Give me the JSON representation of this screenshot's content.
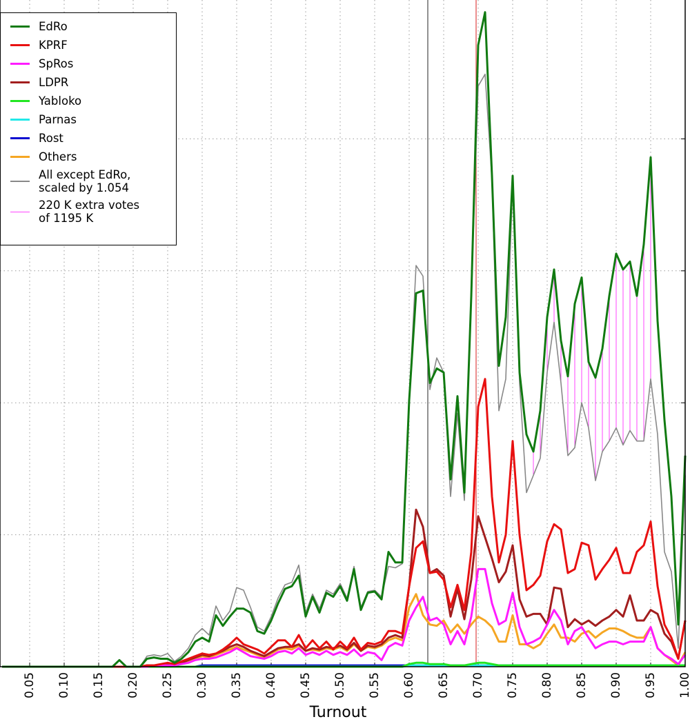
{
  "chart_data": {
    "type": "line",
    "xlabel": "Turnout",
    "x": [
      0.01,
      0.02,
      0.03,
      0.04,
      0.05,
      0.06,
      0.07,
      0.08,
      0.09,
      0.1,
      0.11,
      0.12,
      0.13,
      0.14,
      0.15,
      0.16,
      0.17,
      0.18,
      0.19,
      0.2,
      0.21,
      0.22,
      0.23,
      0.24,
      0.25,
      0.26,
      0.27,
      0.28,
      0.29,
      0.3,
      0.31,
      0.32,
      0.33,
      0.34,
      0.35,
      0.36,
      0.37,
      0.38,
      0.39,
      0.4,
      0.41,
      0.42,
      0.43,
      0.44,
      0.45,
      0.46,
      0.47,
      0.48,
      0.49,
      0.5,
      0.51,
      0.52,
      0.53,
      0.54,
      0.55,
      0.56,
      0.57,
      0.58,
      0.59,
      0.6,
      0.61,
      0.62,
      0.63,
      0.64,
      0.65,
      0.66,
      0.67,
      0.68,
      0.69,
      0.7,
      0.71,
      0.72,
      0.73,
      0.74,
      0.75,
      0.76,
      0.77,
      0.78,
      0.79,
      0.8,
      0.81,
      0.82,
      0.83,
      0.84,
      0.85,
      0.86,
      0.87,
      0.88,
      0.89,
      0.9,
      0.91,
      0.92,
      0.93,
      0.94,
      0.95,
      0.96,
      0.97,
      0.98,
      0.99,
      1.0
    ],
    "series": [
      {
        "name": "EdRo",
        "color": "#117a11",
        "width": 3,
        "values": [
          0,
          0,
          0,
          0,
          0,
          0,
          0,
          0,
          0,
          0,
          0,
          0,
          0,
          0,
          0,
          0,
          0,
          5,
          0,
          0,
          0,
          6,
          7,
          6,
          6,
          3,
          6,
          11,
          19,
          22,
          19,
          39,
          31,
          38,
          44,
          44,
          41,
          27,
          25,
          35,
          48,
          59,
          61,
          69,
          38,
          53,
          41,
          56,
          53,
          61,
          50,
          74,
          43,
          56,
          57,
          51,
          87,
          79,
          79,
          202,
          283,
          285,
          215,
          226,
          223,
          142,
          205,
          132,
          281,
          471,
          496,
          372,
          228,
          265,
          372,
          223,
          176,
          163,
          194,
          265,
          301,
          247,
          220,
          275,
          295,
          231,
          219,
          241,
          281,
          313,
          301,
          307,
          281,
          320,
          386,
          262,
          187,
          129,
          32,
          160
        ]
      },
      {
        "name": "KPRF",
        "color": "#e81010",
        "width": 3,
        "values": [
          0,
          0,
          0,
          0,
          0,
          0,
          0,
          0,
          0,
          0,
          0,
          0,
          0,
          0,
          0,
          0,
          0,
          0,
          0,
          0,
          0,
          1,
          1,
          2,
          3,
          2,
          4,
          6,
          8,
          10,
          9,
          10,
          13,
          17,
          22,
          17,
          15,
          13,
          10,
          15,
          20,
          20,
          15,
          24,
          14,
          20,
          14,
          19,
          13,
          19,
          14,
          22,
          13,
          18,
          17,
          19,
          27,
          27,
          25,
          61,
          90,
          95,
          71,
          72,
          66,
          45,
          62,
          43,
          87,
          197,
          218,
          129,
          79,
          100,
          171,
          100,
          58,
          62,
          69,
          95,
          108,
          104,
          71,
          74,
          94,
          92,
          66,
          74,
          81,
          90,
          71,
          71,
          87,
          92,
          110,
          61,
          32,
          22,
          6,
          35
        ]
      },
      {
        "name": "SpRos",
        "color": "#ff1cff",
        "width": 3,
        "values": [
          0,
          0,
          0,
          0,
          0,
          0,
          0,
          0,
          0,
          0,
          0,
          0,
          0,
          0,
          0,
          0,
          0,
          0,
          0,
          0,
          0,
          0,
          1,
          1,
          1,
          1,
          2,
          3,
          5,
          6,
          6,
          7,
          9,
          11,
          14,
          11,
          8,
          7,
          6,
          8,
          11,
          12,
          10,
          14,
          9,
          11,
          9,
          12,
          9,
          11,
          9,
          13,
          8,
          11,
          10,
          5,
          15,
          18,
          16,
          35,
          45,
          53,
          35,
          37,
          32,
          17,
          27,
          17,
          38,
          74,
          74,
          48,
          32,
          35,
          56,
          30,
          17,
          19,
          22,
          32,
          43,
          35,
          17,
          27,
          30,
          22,
          14,
          17,
          19,
          19,
          17,
          19,
          19,
          19,
          30,
          14,
          9,
          6,
          2,
          9
        ]
      },
      {
        "name": "LDPR",
        "color": "#a21e1e",
        "width": 3,
        "values": [
          0,
          0,
          0,
          0,
          0,
          0,
          0,
          0,
          0,
          0,
          0,
          0,
          0,
          0,
          0,
          0,
          0,
          0,
          0,
          0,
          0,
          1,
          1,
          1,
          2,
          1,
          3,
          5,
          7,
          9,
          8,
          10,
          12,
          15,
          17,
          15,
          12,
          10,
          8,
          11,
          14,
          15,
          15,
          17,
          12,
          14,
          13,
          15,
          14,
          16,
          13,
          18,
          12,
          16,
          15,
          17,
          22,
          24,
          22,
          61,
          119,
          106,
          71,
          74,
          69,
          38,
          59,
          36,
          66,
          114,
          98,
          82,
          64,
          72,
          92,
          51,
          38,
          40,
          40,
          32,
          60,
          59,
          30,
          36,
          32,
          35,
          31,
          35,
          38,
          43,
          38,
          54,
          35,
          35,
          43,
          40,
          25,
          19,
          6,
          35
        ]
      },
      {
        "name": "Yabloko",
        "color": "#22e622",
        "width": 3,
        "values": [
          0,
          0,
          0,
          0,
          0,
          0,
          0,
          0,
          0,
          0,
          0,
          0,
          0,
          0,
          0,
          0,
          0,
          0,
          0,
          0,
          0,
          0,
          0,
          0,
          0,
          0,
          0,
          0,
          0,
          0,
          0,
          0,
          0,
          0,
          0,
          0,
          0,
          0,
          0,
          0,
          0,
          0,
          0,
          0,
          0,
          0,
          0,
          0,
          0,
          0,
          0,
          0,
          0,
          0,
          0,
          0,
          0,
          0,
          0,
          2,
          3,
          3,
          2,
          2,
          2,
          1,
          1,
          1,
          2,
          3,
          3,
          2,
          1,
          1,
          1,
          1,
          1,
          1,
          1,
          1,
          1,
          1,
          1,
          1,
          1,
          1,
          1,
          1,
          1,
          1,
          1,
          1,
          1,
          1,
          1,
          1,
          1,
          1,
          1,
          1
        ]
      },
      {
        "name": "Parnas",
        "color": "#22e8e8",
        "width": 3,
        "values": [
          0,
          0,
          0,
          0,
          0,
          0,
          0,
          0,
          0,
          0,
          0,
          0,
          0,
          0,
          0,
          0,
          0,
          0,
          0,
          0,
          0,
          0,
          0,
          0,
          0,
          0,
          0,
          0,
          0,
          0,
          0,
          0,
          0,
          0,
          0,
          0,
          0,
          0,
          0,
          0,
          0,
          0,
          0,
          0,
          0,
          0,
          0,
          0,
          0,
          0,
          0,
          0,
          0,
          0,
          0,
          0,
          0,
          0,
          0,
          1,
          1,
          1,
          1,
          1,
          1,
          1,
          1,
          1,
          1,
          1,
          1,
          1,
          1,
          1,
          1,
          1,
          1,
          1,
          1,
          1,
          1,
          1,
          1,
          1,
          1,
          1,
          1,
          1,
          1,
          1,
          1,
          1,
          1,
          1,
          1,
          1,
          1,
          1,
          1,
          1
        ]
      },
      {
        "name": "Rost",
        "color": "#0a0ad0",
        "width": 3,
        "values": [
          0,
          0,
          0,
          0,
          0,
          0,
          0,
          0,
          0,
          0,
          0,
          0,
          0,
          0,
          0,
          0,
          0,
          0,
          0,
          0,
          0,
          0,
          0,
          0,
          0,
          0,
          0,
          0,
          0,
          1,
          1,
          1,
          1,
          1,
          1,
          1,
          1,
          1,
          1,
          1,
          1,
          1,
          1,
          1,
          1,
          1,
          1,
          1,
          1,
          1,
          1,
          1,
          1,
          1,
          1,
          1,
          1,
          1,
          1,
          1,
          1,
          1,
          1,
          1,
          1,
          1,
          1,
          1,
          1,
          1,
          1,
          1,
          1,
          1,
          1,
          1,
          1,
          1,
          1,
          1,
          1,
          1,
          1,
          1,
          1,
          1,
          1,
          1,
          1,
          1,
          1,
          1,
          1,
          1,
          1,
          1,
          1,
          1,
          1,
          1
        ]
      },
      {
        "name": "Others",
        "color": "#f5a623",
        "width": 3,
        "values": [
          0,
          0,
          0,
          0,
          0,
          0,
          0,
          0,
          0,
          0,
          0,
          0,
          0,
          0,
          0,
          0,
          0,
          0,
          0,
          0,
          0,
          1,
          1,
          1,
          2,
          1,
          3,
          4,
          6,
          8,
          7,
          9,
          11,
          13,
          15,
          13,
          11,
          9,
          7,
          10,
          13,
          14,
          13,
          16,
          12,
          13,
          12,
          14,
          13,
          15,
          12,
          17,
          12,
          15,
          14,
          16,
          20,
          22,
          20,
          45,
          55,
          39,
          32,
          31,
          35,
          26,
          32,
          25,
          32,
          38,
          35,
          30,
          19,
          19,
          39,
          17,
          17,
          14,
          17,
          25,
          32,
          22,
          22,
          19,
          25,
          27,
          22,
          26,
          29,
          29,
          27,
          24,
          22,
          22,
          30,
          14,
          9,
          5,
          1,
          11
        ]
      },
      {
        "name": "All except EdRo,\nscaled by 1.054",
        "color": "#888888",
        "width": 1.6,
        "values": [
          0,
          0,
          0,
          0,
          0,
          0,
          0,
          0,
          0,
          0,
          0,
          0,
          0,
          0,
          0,
          0,
          0,
          5,
          0,
          0,
          0,
          8,
          9,
          8,
          10,
          4,
          8,
          14,
          24,
          29,
          24,
          46,
          35,
          42,
          60,
          58,
          45,
          30,
          27,
          38,
          52,
          62,
          64,
          77,
          41,
          55,
          44,
          58,
          55,
          63,
          52,
          76,
          45,
          57,
          58,
          53,
          76,
          75,
          78,
          202,
          304,
          296,
          210,
          234,
          223,
          129,
          192,
          126,
          281,
          440,
          449,
          369,
          194,
          218,
          367,
          215,
          132,
          145,
          158,
          223,
          261,
          215,
          160,
          166,
          200,
          181,
          141,
          163,
          171,
          181,
          168,
          179,
          171,
          171,
          218,
          176,
          87,
          72,
          14,
          145
        ]
      }
    ],
    "hatch_label": "220 K extra votes\n of 1195 K",
    "hatch_color": "#ff44ff",
    "hatch_xlim": [
      0.775,
      0.955
    ],
    "reference_lines": [
      {
        "x": 0.627,
        "color": "#555555"
      },
      {
        "x": 0.697,
        "color": "#e05050"
      }
    ],
    "xlim": [
      0.007,
      1.0
    ],
    "xticks": [
      0.05,
      {
        "value": 0.1,
        "label": "0.10"
      },
      0.15,
      {
        "value": 0.2,
        "label": "0.20"
      },
      0.25,
      {
        "value": 0.3,
        "label": "0.30"
      },
      0.35,
      {
        "value": 0.4,
        "label": "0.40"
      },
      0.45,
      {
        "value": 0.5,
        "label": "0.50"
      },
      0.55,
      {
        "value": 0.6,
        "label": "0.60"
      },
      0.65,
      {
        "value": 0.7,
        "label": "0.70"
      },
      0.75,
      {
        "value": 0.8,
        "label": "0.80"
      },
      0.85,
      {
        "value": 0.9,
        "label": "0.90"
      },
      0.95,
      {
        "value": 1.0,
        "label": "1.00"
      }
    ],
    "ylim": [
      0,
      500
    ],
    "yticks": [
      100,
      200,
      300,
      400
    ],
    "grid": true,
    "legend": "upper left"
  }
}
